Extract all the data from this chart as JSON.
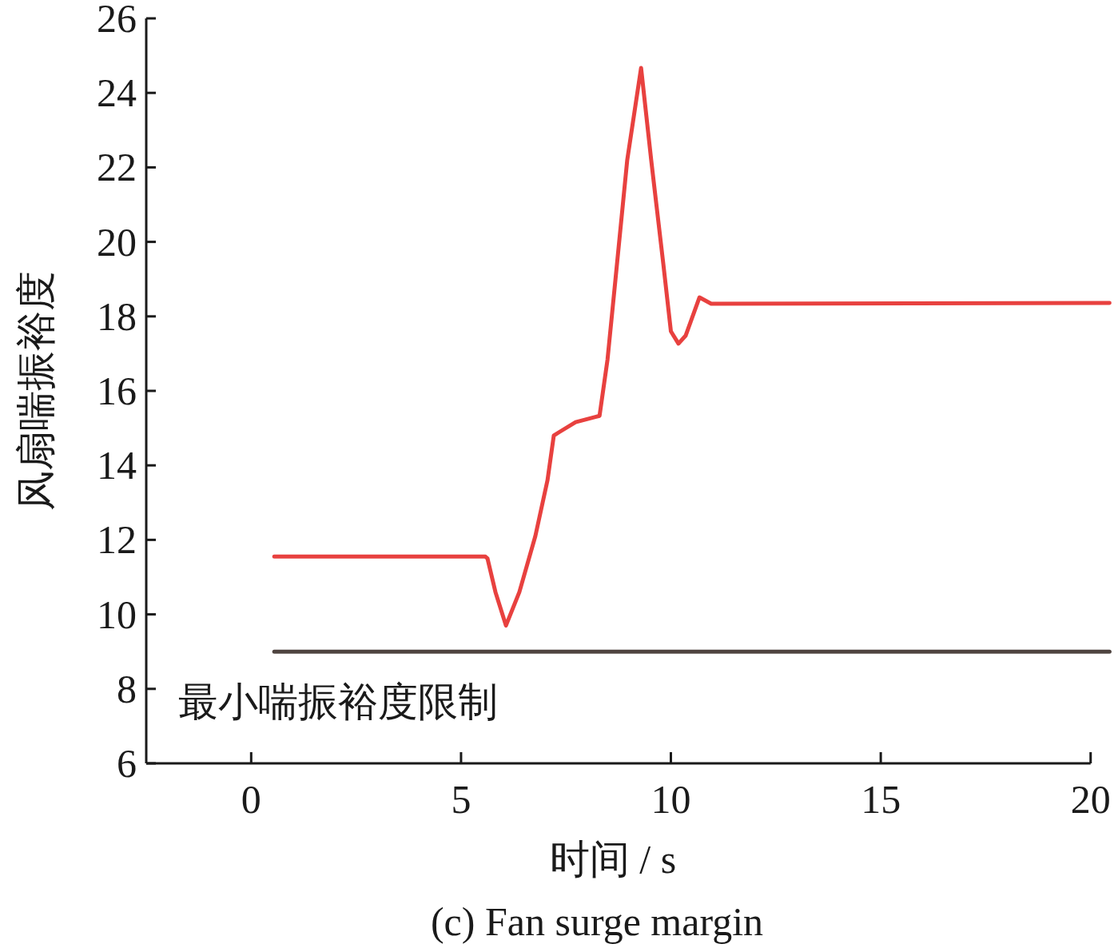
{
  "chart_data": {
    "type": "line",
    "title": "(c) Fan surge margin",
    "xlabel": "时间 / s",
    "ylabel": "风扇喘振裕度",
    "xlim": [
      -2.5,
      20.5
    ],
    "ylim": [
      6,
      26
    ],
    "xticks": [
      0,
      5,
      10,
      15,
      20
    ],
    "yticks": [
      6,
      8,
      10,
      12,
      14,
      16,
      18,
      20,
      22,
      24,
      26
    ],
    "grid": false,
    "legend": false,
    "series": [
      {
        "color": "#e8413f",
        "x": [
          0.55,
          5.58,
          5.63,
          5.82,
          6.07,
          6.39,
          6.77,
          7.06,
          7.21,
          7.35,
          7.73,
          8.2,
          8.3,
          8.49,
          8.68,
          8.96,
          9.29,
          9.53,
          9.82,
          10.0,
          10.18,
          10.35,
          10.68,
          10.96,
          20.45
        ],
        "values": [
          11.55,
          11.55,
          11.5,
          10.6,
          9.7,
          10.6,
          12.1,
          13.6,
          14.8,
          14.9,
          15.16,
          15.3,
          15.33,
          16.84,
          19.0,
          22.2,
          24.67,
          22.2,
          19.4,
          17.6,
          17.27,
          17.48,
          18.51,
          18.34,
          18.36
        ]
      },
      {
        "name": "最小喘振裕度限制",
        "color": "#4f4440",
        "x": [
          0.55,
          20.45
        ],
        "values": [
          9,
          9
        ]
      }
    ]
  }
}
